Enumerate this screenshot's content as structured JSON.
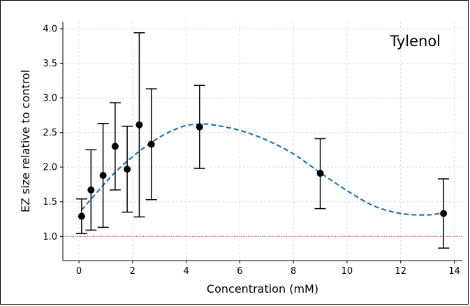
{
  "chart_data": {
    "type": "scatter",
    "annotation": "Tylenol",
    "xlabel": "Concentration (mM)",
    "ylabel": "EZ size relative to control",
    "xlim": [
      -0.6,
      14.3
    ],
    "ylim": [
      0.65,
      4.1
    ],
    "x_ticks": [
      0,
      2,
      4,
      6,
      8,
      10,
      12,
      14
    ],
    "y_ticks": [
      1.0,
      1.5,
      2.0,
      2.5,
      3.0,
      3.5,
      4.0
    ],
    "x_tick_labels": [
      "0",
      "2",
      "4",
      "6",
      "8",
      "10",
      "12",
      "14"
    ],
    "y_tick_labels": [
      "1.0",
      "1.5",
      "2.0",
      "2.5",
      "3.0",
      "3.5",
      "4.0"
    ],
    "grid": true,
    "points": [
      {
        "x": 0.1,
        "y": 1.29,
        "err_low": 1.04,
        "err_high": 1.54
      },
      {
        "x": 0.45,
        "y": 1.67,
        "err_low": 1.09,
        "err_high": 2.25
      },
      {
        "x": 0.9,
        "y": 1.88,
        "err_low": 1.13,
        "err_high": 2.63
      },
      {
        "x": 1.35,
        "y": 2.3,
        "err_low": 1.67,
        "err_high": 2.93
      },
      {
        "x": 1.8,
        "y": 1.97,
        "err_low": 1.35,
        "err_high": 2.59
      },
      {
        "x": 2.25,
        "y": 2.61,
        "err_low": 1.28,
        "err_high": 3.94
      },
      {
        "x": 2.7,
        "y": 2.33,
        "err_low": 1.53,
        "err_high": 3.13
      },
      {
        "x": 4.5,
        "y": 2.58,
        "err_low": 1.98,
        "err_high": 3.18
      },
      {
        "x": 9.0,
        "y": 1.91,
        "err_low": 1.4,
        "err_high": 2.41
      },
      {
        "x": 13.6,
        "y": 1.33,
        "err_low": 0.83,
        "err_high": 1.83
      }
    ],
    "fit_curve": {
      "style": "dashed",
      "x": [
        0.1,
        0.5,
        1.0,
        1.5,
        2.0,
        2.5,
        3.0,
        3.5,
        4.0,
        4.5,
        5.0,
        6.0,
        7.0,
        8.0,
        9.0,
        10.0,
        11.0,
        12.0,
        13.0,
        13.6
      ],
      "y": [
        1.38,
        1.56,
        1.78,
        1.98,
        2.15,
        2.3,
        2.43,
        2.53,
        2.6,
        2.62,
        2.61,
        2.53,
        2.39,
        2.19,
        1.92,
        1.66,
        1.44,
        1.33,
        1.31,
        1.34
      ]
    },
    "reference_line": {
      "y": 1.0,
      "style": "dotted"
    },
    "colors": {
      "points": "#000000",
      "errorbars": "#000000",
      "fit_curve": "#1f77b4",
      "reference_line": "#d62728",
      "grid": "#dddddd"
    }
  }
}
